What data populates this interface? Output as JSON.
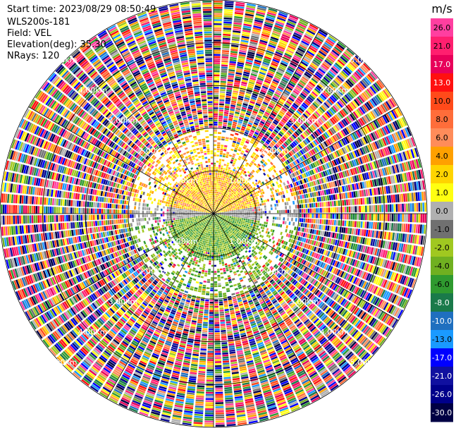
{
  "header": {
    "start_time": "Start time: 2023/08/29 08:50:49",
    "site": "WLS200s-181",
    "field": "Field: VEL",
    "elevation": "Elevation(deg): 35.30",
    "nrays": "NRays: 120"
  },
  "colorbar": {
    "unit": "m/s",
    "ticks": [
      "26.0",
      "21.0",
      "17.0",
      "13.0",
      "10.0",
      "8.0",
      "6.0",
      "4.0",
      "2.0",
      "1.0",
      "0.0",
      "-1.0",
      "-2.0",
      "-4.0",
      "-6.0",
      "-8.0",
      "-10.0",
      "-13.0",
      "-17.0",
      "-21.0",
      "-26.0",
      "-30.0"
    ],
    "colors": [
      "#ff3fa0",
      "#ff1f6f",
      "#e8005a",
      "#ff1010",
      "#ff4a1a",
      "#ff6d3a",
      "#ff8c5a",
      "#ffa000",
      "#ffd400",
      "#ffff10",
      "#b0b0b0",
      "#707070",
      "#a0c820",
      "#70b020",
      "#2f9a2f",
      "#1a7a4a",
      "#1f6fbf",
      "#1a9aff",
      "#0000ff",
      "#1010a0",
      "#00008b",
      "#000044"
    ]
  },
  "chart_data": {
    "type": "heatmap",
    "title": "",
    "field": "VEL",
    "unit": "m/s",
    "projection": "polar PPI",
    "nrays": 120,
    "range_ring_labels": [
      "1.00km",
      "2.00km",
      "3.00km",
      "4.00km",
      "5.00km"
    ],
    "max_range_km": 5.0,
    "value_range": [
      -30,
      26
    ],
    "clear_air_radius_km": 2.0
  }
}
